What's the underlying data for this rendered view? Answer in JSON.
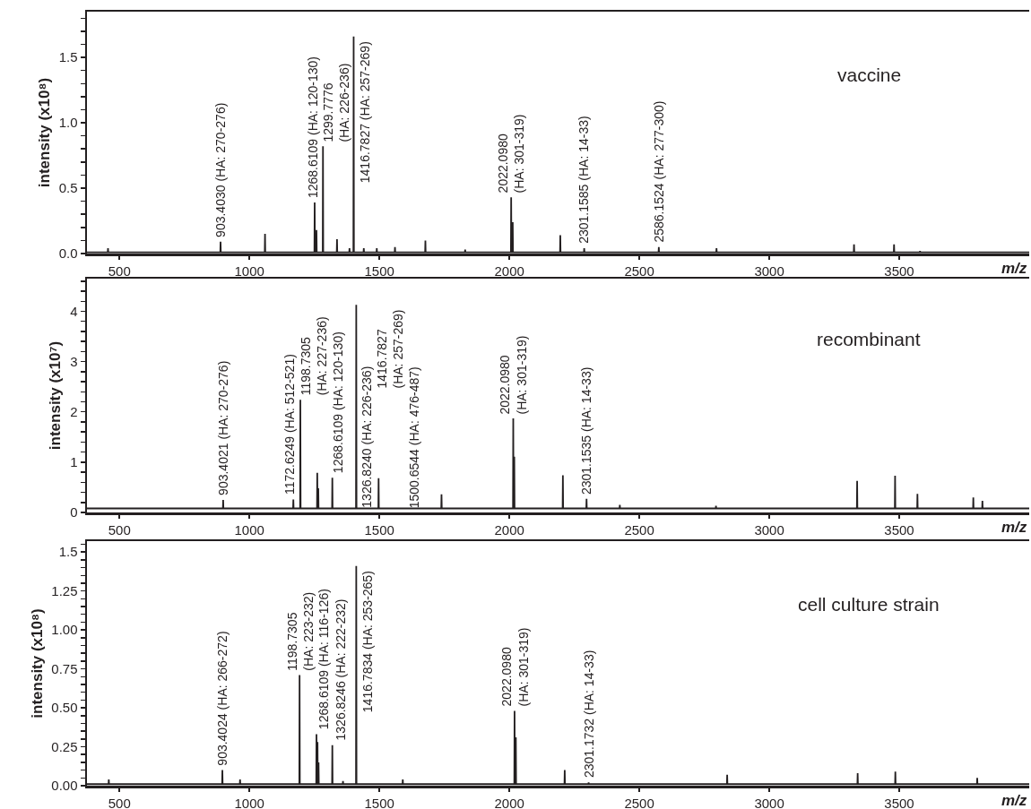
{
  "chart_data": [
    {
      "type": "line",
      "xlabel": "m/z",
      "ylabel": "intensity (x10⁸)",
      "xlim": [
        375,
        4000
      ],
      "xticks": [
        500,
        1000,
        1500,
        2000,
        2500,
        3000,
        3500
      ],
      "ylim": [
        0,
        1.85
      ],
      "yticks": [
        {
          "value": 0,
          "label": "0.0"
        },
        {
          "value": 0.1,
          "label": null
        },
        {
          "value": 0.2,
          "label": null
        },
        {
          "value": 0.3,
          "label": null
        },
        {
          "value": 0.4,
          "label": null
        },
        {
          "value": 0.5,
          "label": "0.5"
        },
        {
          "value": 0.6,
          "label": null
        },
        {
          "value": 0.7,
          "label": null
        },
        {
          "value": 0.8,
          "label": null
        },
        {
          "value": 0.9,
          "label": null
        },
        {
          "value": 1,
          "label": "1.0"
        },
        {
          "value": 1.1,
          "label": null
        },
        {
          "value": 1.2,
          "label": null
        },
        {
          "value": 1.3,
          "label": null
        },
        {
          "value": 1.4,
          "label": null
        },
        {
          "value": 1.5,
          "label": "1.5"
        },
        {
          "value": 1.6,
          "label": null
        },
        {
          "value": 1.7,
          "label": null
        },
        {
          "value": 1.8,
          "label": null
        }
      ],
      "series": [
        {
          "color": "#231f20",
          "x": [
            375,
            455,
            456,
            457,
            888,
            889,
            890,
            1059,
            1060,
            1061,
            1250,
            1251,
            1252,
            1257,
            1258,
            1259,
            1282,
            1283,
            1284,
            1336,
            1337,
            1338,
            1384,
            1385,
            1386,
            1400,
            1401,
            1402,
            1439,
            1440,
            1441,
            1489,
            1490,
            1491,
            1559,
            1560,
            1561,
            1676,
            1677,
            1678,
            1829,
            1830,
            1831,
            2006,
            2007,
            2008,
            2012,
            2013,
            2014,
            2195,
            2196,
            2197,
            2287,
            2288,
            2289,
            2574,
            2575,
            2576,
            2796,
            2797,
            2798,
            3325,
            3326,
            3327,
            3479,
            3480,
            3481,
            3579,
            3580,
            3581,
            4000
          ],
          "values": [
            0.01,
            0.01,
            0.04,
            0.01,
            0.01,
            0.09,
            0.01,
            0.01,
            0.15,
            0.01,
            0.01,
            0.39,
            0.01,
            0.01,
            0.18,
            0.01,
            0.01,
            0.82,
            0.01,
            0.01,
            0.11,
            0.01,
            0.01,
            0.04,
            0.01,
            0.01,
            1.66,
            0.01,
            0.01,
            0.04,
            0.01,
            0.01,
            0.04,
            0.01,
            0.01,
            0.05,
            0.01,
            0.01,
            0.1,
            0.01,
            0.01,
            0.03,
            0.01,
            0.01,
            0.43,
            0.01,
            0.01,
            0.24,
            0.01,
            0.01,
            0.14,
            0.01,
            0.01,
            0.04,
            0.01,
            0.01,
            0.05,
            0.01,
            0.01,
            0.04,
            0.01,
            0.01,
            0.07,
            0.01,
            0.01,
            0.07,
            0.01,
            0.01,
            0.02,
            0.01,
            0.01
          ]
        }
      ],
      "annotations": [
        {
          "text": "903.4030 (HA: 270-276)",
          "x": 889,
          "y": 0.09
        },
        {
          "text": "1268.6109 (HA: 120-130)",
          "x": 1251,
          "y": 0.39
        },
        {
          "text": "1299.7776\n(HA: 226-236)",
          "x": 1283,
          "y": 0.82
        },
        {
          "text": "1416.7827 (HA: 257-269)",
          "x": 1401,
          "y": 1.66
        },
        {
          "text": "2022.0980\n(HA: 301-319)",
          "x": 2007,
          "y": 0.43
        },
        {
          "text": "2301.1585 (HA: 14-33)",
          "x": 2288,
          "y": 0.04
        },
        {
          "text": "2586.1524 (HA: 277-300)",
          "x": 2575,
          "y": 0.05
        },
        "vaccine"
      ]
    },
    {
      "type": "line",
      "xlabel": "m/z",
      "ylabel": "intensity (x10⁷)",
      "xlim": [
        375,
        4000
      ],
      "xticks": [
        500,
        1000,
        1500,
        2000,
        2500,
        3000,
        3500
      ],
      "ylim": [
        0,
        4.65
      ],
      "yticks": [
        0,
        {
          "value": 0.2,
          "label": null
        },
        {
          "value": 0.4,
          "label": null
        },
        {
          "value": 0.6,
          "label": null
        },
        {
          "value": 0.8,
          "label": null
        },
        1,
        {
          "value": 1.2,
          "label": null
        },
        {
          "value": 1.4,
          "label": null
        },
        {
          "value": 1.6,
          "label": null
        },
        {
          "value": 1.8,
          "label": null
        },
        2,
        {
          "value": 2.2,
          "label": null
        },
        {
          "value": 2.4,
          "label": null
        },
        {
          "value": 2.6,
          "label": null
        },
        {
          "value": 2.8,
          "label": null
        },
        3,
        {
          "value": 3.2,
          "label": null
        },
        {
          "value": 3.4,
          "label": null
        },
        {
          "value": 3.6,
          "label": null
        },
        {
          "value": 3.8,
          "label": null
        },
        4,
        {
          "value": 4.2,
          "label": null
        },
        {
          "value": 4.4,
          "label": null
        },
        {
          "value": 4.6,
          "label": null
        }
      ],
      "series": [
        {
          "color": "#231f20",
          "x": [
            375,
            898,
            899,
            900,
            1168,
            1169,
            1170,
            1195,
            1196,
            1197,
            1260,
            1261,
            1262,
            1264,
            1265,
            1266,
            1318,
            1319,
            1320,
            1410,
            1411,
            1412,
            1496,
            1497,
            1498,
            1738,
            1739,
            1740,
            2014,
            2015,
            2016,
            2018,
            2019,
            2020,
            2205,
            2206,
            2207,
            2296,
            2297,
            2298,
            2424,
            2425,
            2426,
            2794,
            2795,
            2796,
            3337,
            3338,
            3339,
            3483,
            3484,
            3485,
            3569,
            3570,
            3571,
            3784,
            3785,
            3786,
            3819,
            3820,
            3821,
            4000
          ],
          "values": [
            0.08,
            0.08,
            0.25,
            0.08,
            0.08,
            0.26,
            0.08,
            0.08,
            2.24,
            0.08,
            0.08,
            0.79,
            0.08,
            0.08,
            0.48,
            0.08,
            0.08,
            0.69,
            0.08,
            0.08,
            4.13,
            0.08,
            0.08,
            0.68,
            0.08,
            0.08,
            0.36,
            0.08,
            0.08,
            1.87,
            0.08,
            0.08,
            1.11,
            0.08,
            0.08,
            0.74,
            0.08,
            0.08,
            0.27,
            0.08,
            0.08,
            0.15,
            0.08,
            0.08,
            0.13,
            0.08,
            0.08,
            0.63,
            0.08,
            0.08,
            0.73,
            0.08,
            0.08,
            0.37,
            0.08,
            0.08,
            0.3,
            0.08,
            0.08,
            0.23,
            0.08,
            0.08
          ]
        }
      ],
      "annotations": [
        {
          "text": "903.4021 (HA: 270-276)",
          "x": 899,
          "y": 0.25
        },
        {
          "text": "1172.6249 (HA: 512-521)",
          "x": 1169,
          "y": 0.26
        },
        {
          "text": "1198.7305\n(HA: 227-236)",
          "x": 1196,
          "y": 2.24
        },
        {
          "text": "1268.6109 (HA: 120-130)",
          "x": 1261,
          "y": 0.79
        },
        {
          "text": "1326.8240 (HA: 226-236)",
          "x": 1319,
          "y": 0.69
        },
        {
          "text": "1416.7827\n(HA: 257-269)",
          "x": 1411,
          "y": 4.13
        },
        {
          "text": "1500.6544 (HA: 476-487)",
          "x": 1497,
          "y": 0.68
        },
        {
          "text": "2022.0980\n(HA: 301-319)",
          "x": 2015,
          "y": 1.87
        },
        {
          "text": "2301.1535 (HA: 14-33)",
          "x": 2297,
          "y": 0.27
        },
        "recombinant"
      ]
    },
    {
      "type": "line",
      "xlabel": "m/z",
      "ylabel": "intensity (x10⁸)",
      "xlim": [
        375,
        4000
      ],
      "xticks": [
        500,
        1000,
        1500,
        2000,
        2500,
        3000,
        3500
      ],
      "ylim": [
        0,
        1.57
      ],
      "yticks": [
        {
          "value": 0,
          "label": "0.00"
        },
        {
          "value": 0.05,
          "label": null
        },
        {
          "value": 0.1,
          "label": null
        },
        {
          "value": 0.15,
          "label": null
        },
        {
          "value": 0.2,
          "label": null
        },
        {
          "value": 0.25,
          "label": "0.25"
        },
        {
          "value": 0.3,
          "label": null
        },
        {
          "value": 0.35,
          "label": null
        },
        {
          "value": 0.4,
          "label": null
        },
        {
          "value": 0.45,
          "label": null
        },
        {
          "value": 0.5,
          "label": "0.50"
        },
        {
          "value": 0.55,
          "label": null
        },
        {
          "value": 0.6,
          "label": null
        },
        {
          "value": 0.65,
          "label": null
        },
        {
          "value": 0.7,
          "label": null
        },
        {
          "value": 0.75,
          "label": "0.75"
        },
        {
          "value": 0.8,
          "label": null
        },
        {
          "value": 0.85,
          "label": null
        },
        {
          "value": 0.9,
          "label": null
        },
        {
          "value": 0.95,
          "label": null
        },
        {
          "value": 1,
          "label": "1.00"
        },
        {
          "value": 1.05,
          "label": null
        },
        {
          "value": 1.1,
          "label": null
        },
        {
          "value": 1.15,
          "label": null
        },
        {
          "value": 1.2,
          "label": null
        },
        {
          "value": 1.25,
          "label": "1.25"
        },
        {
          "value": 1.3,
          "label": null
        },
        {
          "value": 1.35,
          "label": null
        },
        {
          "value": 1.4,
          "label": null
        },
        {
          "value": 1.45,
          "label": null
        },
        {
          "value": 1.5,
          "label": "1.5"
        },
        {
          "value": 1.55,
          "label": null
        }
      ],
      "series": [
        {
          "color": "#231f20",
          "x": [
            375,
            458,
            459,
            460,
            895,
            896,
            897,
            963,
            964,
            965,
            1192,
            1193,
            1194,
            1257,
            1258,
            1259,
            1261,
            1262,
            1263,
            1265,
            1266,
            1267,
            1318,
            1319,
            1320,
            1359,
            1360,
            1361,
            1410,
            1411,
            1412,
            1589,
            1590,
            1591,
            2019,
            2020,
            2021,
            2024,
            2025,
            2026,
            2212,
            2213,
            2214,
            2304,
            2305,
            2306,
            2837,
            2838,
            2839,
            3339,
            3340,
            3341,
            3484,
            3485,
            3486,
            3799,
            3800,
            3801,
            4000
          ],
          "values": [
            0.01,
            0.01,
            0.04,
            0.01,
            0.01,
            0.1,
            0.01,
            0.01,
            0.04,
            0.01,
            0.01,
            0.71,
            0.01,
            0.01,
            0.33,
            0.01,
            0.01,
            0.28,
            0.01,
            0.01,
            0.15,
            0.01,
            0.01,
            0.26,
            0.01,
            0.01,
            0.03,
            0.01,
            0.01,
            1.41,
            0.01,
            0.01,
            0.04,
            0.01,
            0.01,
            0.48,
            0.01,
            0.01,
            0.31,
            0.01,
            0.01,
            0.1,
            0.01,
            0.01,
            0.02,
            0.01,
            0.01,
            0.07,
            0.01,
            0.01,
            0.08,
            0.01,
            0.01,
            0.09,
            0.01,
            0.01,
            0.05,
            0.01,
            0.01
          ]
        }
      ],
      "annotations": [
        {
          "text": "903.4024 (HA: 266-272)",
          "x": 896,
          "y": 0.1
        },
        {
          "text": "1198.7305\n(HA: 223-232)",
          "x": 1193,
          "y": 0.71
        },
        {
          "text": "1268.6109 (HA: 116-126)",
          "x": 1258,
          "y": 0.33
        },
        {
          "text": "1326.8246 (HA: 222-232)",
          "x": 1319,
          "y": 0.26
        },
        {
          "text": "1416.7834 (HA: 253-265)",
          "x": 1411,
          "y": 1.41
        },
        {
          "text": "2022.0980\n(HA: 301-319)",
          "x": 2020,
          "y": 0.48
        },
        {
          "text": "2301.1732 (HA: 14-33)",
          "x": 2305,
          "y": 0.02
        },
        "cell culture strain"
      ]
    }
  ]
}
